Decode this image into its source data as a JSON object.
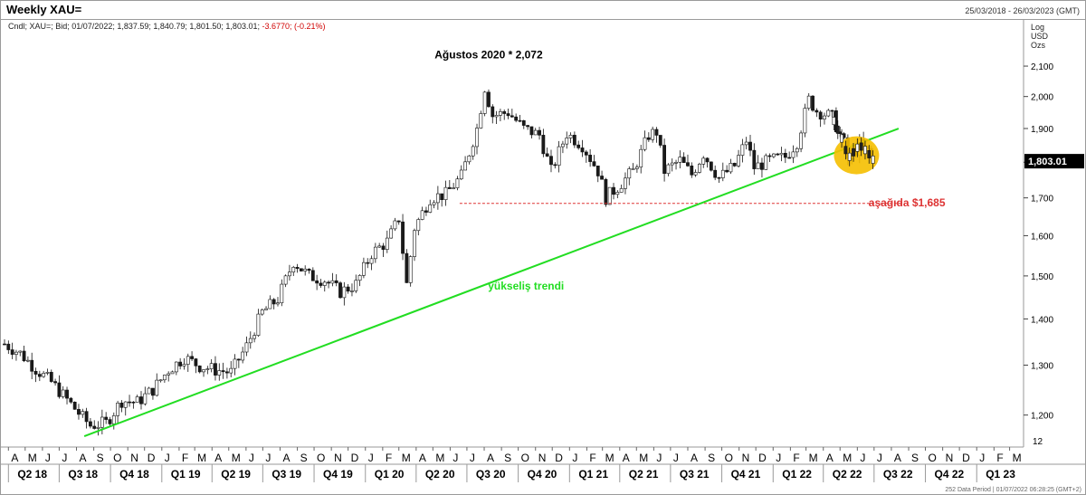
{
  "header": {
    "title": "Weekly XAU=",
    "date_range": "25/03/2018 - 26/03/2023 (GMT)",
    "ohlc_prefix": "Cndl; XAU=; Bid; 01/07/2022; 1,837.59; 1,840.79; 1,801.50; 1,803.01;",
    "ohlc_change": "-3.6770; (-0.21%)",
    "units": [
      "Log",
      "USD",
      "Ozs"
    ]
  },
  "colors": {
    "up_candle": "#ffffff",
    "down_candle": "#1a1a1a",
    "trendline": "#22dd22",
    "support_line": "#dd3333",
    "highlight_circle": "#f5bf00",
    "last_price_bg": "#000000"
  },
  "footer_text": "252 Data Period | 01/07/2022 06:28:25 (GMT+2)",
  "chart_data": {
    "type": "candlestick",
    "title": "Weekly XAU=",
    "scale": "log",
    "ylim": [
      1140,
      2200
    ],
    "y_ticks": [
      1200,
      1300,
      1400,
      1500,
      1600,
      1700,
      1800,
      1900,
      2000,
      2100
    ],
    "y_tick_labels": [
      "1,200",
      "1,300",
      "1,400",
      "1,500",
      "1,600",
      "1,700",
      "1,800",
      "1,900",
      "2,000",
      "2,100"
    ],
    "bottom_axis_label": "12",
    "last_price": 1803.01,
    "last_price_label": "1,803.01",
    "x_range": [
      "2018-03-25",
      "2023-03-26"
    ],
    "months": [
      "A",
      "M",
      "J",
      "J",
      "A",
      "S",
      "O",
      "N",
      "D",
      "J",
      "F",
      "M",
      "A",
      "M",
      "J",
      "J",
      "A",
      "S",
      "O",
      "N",
      "D",
      "J",
      "F",
      "M",
      "A",
      "M",
      "J",
      "J",
      "A",
      "S",
      "O",
      "N",
      "D",
      "J",
      "F",
      "M",
      "A",
      "M",
      "J",
      "J",
      "A",
      "S",
      "O",
      "N",
      "D",
      "J",
      "F",
      "M",
      "A",
      "M",
      "J",
      "J",
      "A",
      "S",
      "O",
      "N",
      "D",
      "J",
      "F",
      "M"
    ],
    "quarters": [
      "Q2 18",
      "Q3 18",
      "Q4 18",
      "Q1 19",
      "Q2 19",
      "Q3 19",
      "Q4 19",
      "Q1 20",
      "Q2 20",
      "Q3 20",
      "Q4 20",
      "Q1 21",
      "Q2 21",
      "Q3 21",
      "Q4 21",
      "Q1 22",
      "Q2 22",
      "Q3 22",
      "Q4 22",
      "Q1 23"
    ],
    "weekly_close_points": [
      [
        "2018-03-25",
        1345
      ],
      [
        "2018-04-22",
        1325
      ],
      [
        "2018-05-20",
        1292
      ],
      [
        "2018-06-17",
        1265
      ],
      [
        "2018-07-15",
        1230
      ],
      [
        "2018-08-12",
        1195
      ],
      [
        "2018-08-26",
        1180
      ],
      [
        "2018-09-23",
        1185
      ],
      [
        "2018-10-21",
        1228
      ],
      [
        "2018-11-18",
        1225
      ],
      [
        "2018-12-16",
        1250
      ],
      [
        "2019-01-13",
        1290
      ],
      [
        "2019-02-10",
        1316
      ],
      [
        "2019-03-10",
        1298
      ],
      [
        "2019-04-07",
        1290
      ],
      [
        "2019-05-05",
        1285
      ],
      [
        "2019-06-02",
        1340
      ],
      [
        "2019-06-30",
        1415
      ],
      [
        "2019-07-28",
        1445
      ],
      [
        "2019-08-25",
        1535
      ],
      [
        "2019-09-22",
        1500
      ],
      [
        "2019-10-20",
        1490
      ],
      [
        "2019-11-17",
        1462
      ],
      [
        "2019-12-15",
        1480
      ],
      [
        "2020-01-12",
        1555
      ],
      [
        "2020-02-09",
        1585
      ],
      [
        "2020-03-01",
        1645
      ],
      [
        "2020-03-15",
        1480
      ],
      [
        "2020-03-29",
        1620
      ],
      [
        "2020-04-26",
        1700
      ],
      [
        "2020-05-24",
        1710
      ],
      [
        "2020-06-21",
        1760
      ],
      [
        "2020-07-19",
        1900
      ],
      [
        "2020-08-02",
        2030
      ],
      [
        "2020-08-16",
        1940
      ],
      [
        "2020-09-13",
        1950
      ],
      [
        "2020-10-11",
        1900
      ],
      [
        "2020-11-08",
        1880
      ],
      [
        "2020-11-29",
        1775
      ],
      [
        "2020-12-27",
        1885
      ],
      [
        "2021-01-24",
        1850
      ],
      [
        "2021-02-21",
        1775
      ],
      [
        "2021-03-07",
        1700
      ],
      [
        "2021-03-28",
        1730
      ],
      [
        "2021-04-25",
        1775
      ],
      [
        "2021-05-23",
        1880
      ],
      [
        "2021-06-06",
        1890
      ],
      [
        "2021-06-20",
        1775
      ],
      [
        "2021-07-18",
        1805
      ],
      [
        "2021-08-08",
        1765
      ],
      [
        "2021-08-29",
        1825
      ],
      [
        "2021-09-26",
        1755
      ],
      [
        "2021-10-24",
        1790
      ],
      [
        "2021-11-14",
        1865
      ],
      [
        "2021-11-28",
        1785
      ],
      [
        "2021-12-26",
        1805
      ],
      [
        "2022-01-23",
        1815
      ],
      [
        "2022-02-13",
        1860
      ],
      [
        "2022-03-06",
        1990
      ],
      [
        "2022-03-20",
        1955
      ],
      [
        "2022-04-17",
        1935
      ],
      [
        "2022-05-08",
        1855
      ],
      [
        "2022-05-15",
        1810
      ],
      [
        "2022-06-05",
        1850
      ],
      [
        "2022-06-19",
        1830
      ],
      [
        "2022-07-01",
        1803
      ]
    ],
    "annotations": [
      {
        "text": "Ağustos 2020 * 2,072",
        "x": "2020-08-09",
        "value": 2072
      },
      {
        "text": "aşağıda $1,685",
        "x": "2022-06-05",
        "value": 1685
      },
      {
        "text": "yükseliş trendi",
        "x": "2020-10-15",
        "value": 1498
      }
    ],
    "trendline": {
      "from": [
        "2018-08-15",
        1160
      ],
      "to": [
        "2022-08-14",
        1900
      ]
    },
    "support_level": {
      "value": 1685,
      "from": "2020-06-18",
      "to": "2022-08-21"
    },
    "highlight": {
      "from": "2022-04-20",
      "to": "2022-07-10",
      "center_value": 1820
    }
  }
}
